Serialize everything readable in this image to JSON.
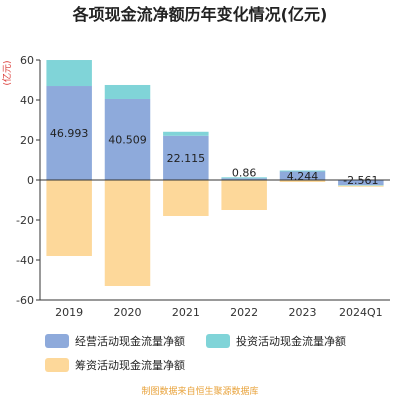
{
  "chart_data": {
    "type": "bar",
    "title": "各项现金流净额历年变化情况(亿元)",
    "ylabel": "(亿元)",
    "categories": [
      "2019",
      "2020",
      "2021",
      "2022",
      "2023",
      "2024Q1"
    ],
    "ylim": [
      -60,
      60
    ],
    "yticks": [
      60,
      40,
      20,
      0,
      -20,
      -40,
      -60
    ],
    "grid": false,
    "legend_position": "bottom",
    "series": [
      {
        "name": "经营活动现金流量净额",
        "color": "#8eaadb",
        "values": [
          46.993,
          40.509,
          22.115,
          0.86,
          4.244,
          -2.561
        ],
        "data_labels": [
          "46.993",
          "40.509",
          "22.115",
          "0.86",
          "4.244",
          "-2.561"
        ]
      },
      {
        "name": "投资活动现金流量净额",
        "color": "#80d4d8",
        "values": [
          13,
          7,
          2,
          0.5,
          0.5,
          -0.3
        ]
      },
      {
        "name": "筹资活动现金流量净额",
        "color": "#fdd89a",
        "values": [
          -38,
          -53,
          -18,
          -15,
          -1,
          -0.5
        ]
      }
    ]
  },
  "footer": {
    "source": "制图数据来自恒生聚源数据库",
    "color": "#e8a23a"
  }
}
